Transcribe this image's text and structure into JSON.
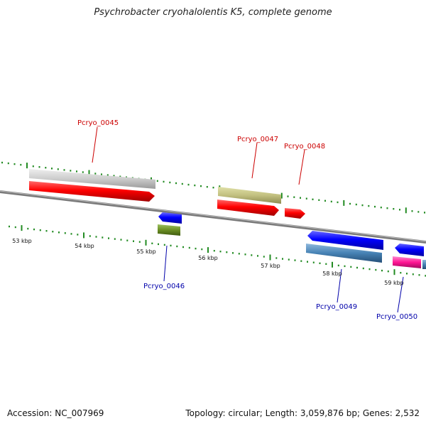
{
  "title": "Psychrobacter cryohalolentis K5, complete genome",
  "footer": {
    "accession": "Accession: NC_007969",
    "summary": "Topology: circular; Length: 3,059,876 bp; Genes: 2,532"
  },
  "scale_labels": [
    "53 kbp",
    "54 kbp",
    "55 kbp",
    "56 kbp",
    "57 kbp",
    "58 kbp",
    "59 kbp"
  ],
  "gene_labels": {
    "g45": "Pcryo_0045",
    "g46": "Pcryo_0046",
    "g47": "Pcryo_0047",
    "g48": "Pcryo_0048",
    "g49": "Pcryo_0049",
    "g50": "Pcryo_0050"
  },
  "colors": {
    "genome_line": "#808080",
    "forward_cds": "#ff0000",
    "reverse_cds": "#0000ff",
    "tick": "#228b22",
    "label_forward": "#cc0000",
    "label_reverse": "#0000aa"
  }
}
